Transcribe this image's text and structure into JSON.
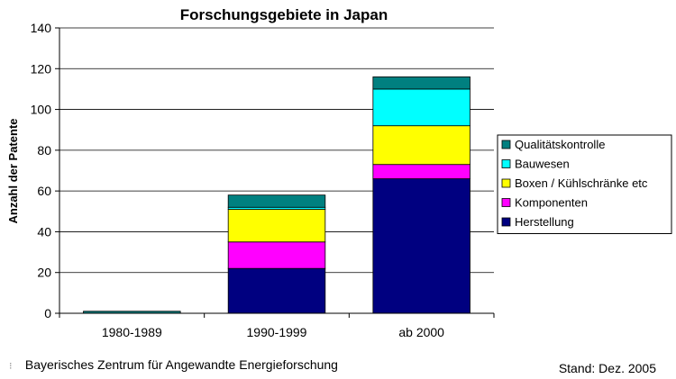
{
  "chart_data": {
    "type": "bar",
    "stacked": true,
    "title": "Forschungsgebiete in Japan",
    "xlabel": "",
    "ylabel": "Anzahl der Patente",
    "ylim": [
      0,
      140
    ],
    "yticks": [
      0,
      20,
      40,
      60,
      80,
      100,
      120,
      140
    ],
    "grid": true,
    "legend_position": "right",
    "categories": [
      "1980-1989",
      "1990-1999",
      "ab 2000"
    ],
    "series": [
      {
        "name": "Herstellung",
        "color": "#000080",
        "values": [
          0,
          22,
          66
        ]
      },
      {
        "name": "Komponenten",
        "color": "#ff00ff",
        "values": [
          0,
          13,
          7
        ]
      },
      {
        "name": "Boxen / Kühlschränke etc",
        "color": "#ffff00",
        "values": [
          0,
          16,
          19
        ]
      },
      {
        "name": "Bauwesen",
        "color": "#00ffff",
        "values": [
          0,
          1,
          18
        ]
      },
      {
        "name": "Qualitätskontrolle",
        "color": "#008080",
        "values": [
          1,
          6,
          6
        ]
      }
    ]
  },
  "footer": {
    "logo_mark": "ZAE",
    "source": "Bayerisches Zentrum für Angewandte Energieforschung",
    "stand": "Stand: Dez. 2005"
  }
}
